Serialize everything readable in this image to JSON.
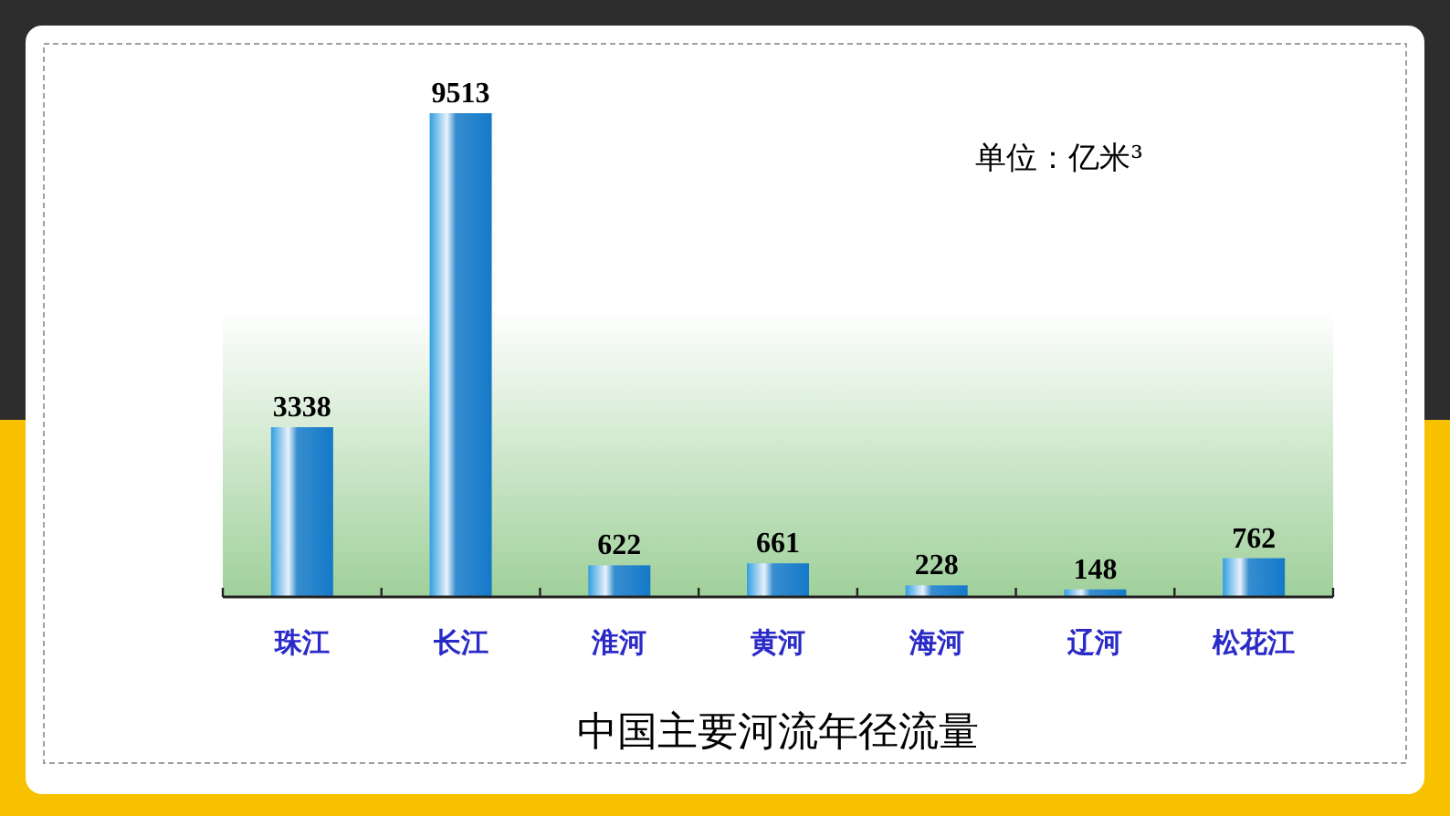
{
  "chart_data": {
    "type": "bar",
    "title": "中国主要河流年径流量",
    "categories": [
      "珠江",
      "长江",
      "淮河",
      "黄河",
      "海河",
      "辽河",
      "松花江"
    ],
    "values": [
      3338,
      9513,
      622,
      661,
      228,
      148,
      762
    ],
    "color": "#1479c8",
    "data_labels": true,
    "annotations": [
      "单位：亿米³"
    ]
  }
}
